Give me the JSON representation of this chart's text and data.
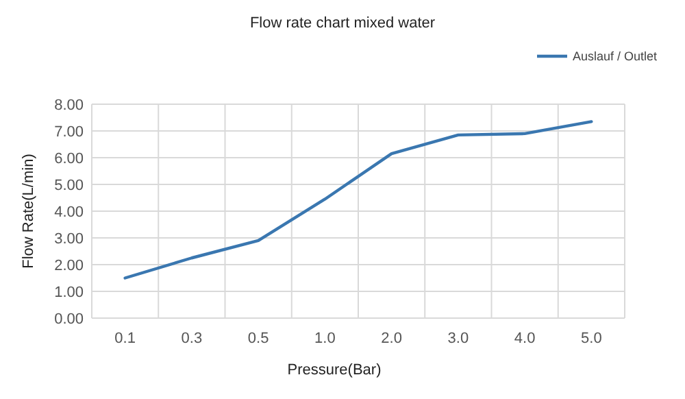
{
  "chart_data": {
    "type": "line",
    "title": "Flow rate chart mixed water",
    "xlabel": "Pressure(Bar)",
    "ylabel": "Flow Rate(L/min)",
    "categories": [
      "0.1",
      "0.3",
      "0.5",
      "1.0",
      "2.0",
      "3.0",
      "4.0",
      "5.0"
    ],
    "series": [
      {
        "name": "Auslauf / Outlet",
        "color": "#3a77b0",
        "values": [
          1.5,
          2.25,
          2.9,
          4.45,
          6.15,
          6.85,
          6.9,
          7.35
        ]
      }
    ],
    "ylim": [
      0,
      8
    ],
    "yticks": [
      {
        "value": 0,
        "label": "0.00"
      },
      {
        "value": 1,
        "label": "1.00"
      },
      {
        "value": 2,
        "label": "2.00"
      },
      {
        "value": 3,
        "label": "3.00"
      },
      {
        "value": 4,
        "label": "4.00"
      },
      {
        "value": 5,
        "label": "5.00"
      },
      {
        "value": 6,
        "label": "6.00"
      },
      {
        "value": 7,
        "label": "7.00"
      },
      {
        "value": 8,
        "label": "8.00"
      }
    ],
    "grid": true,
    "legend": "top right",
    "marker": "none",
    "line_style": "solid"
  }
}
